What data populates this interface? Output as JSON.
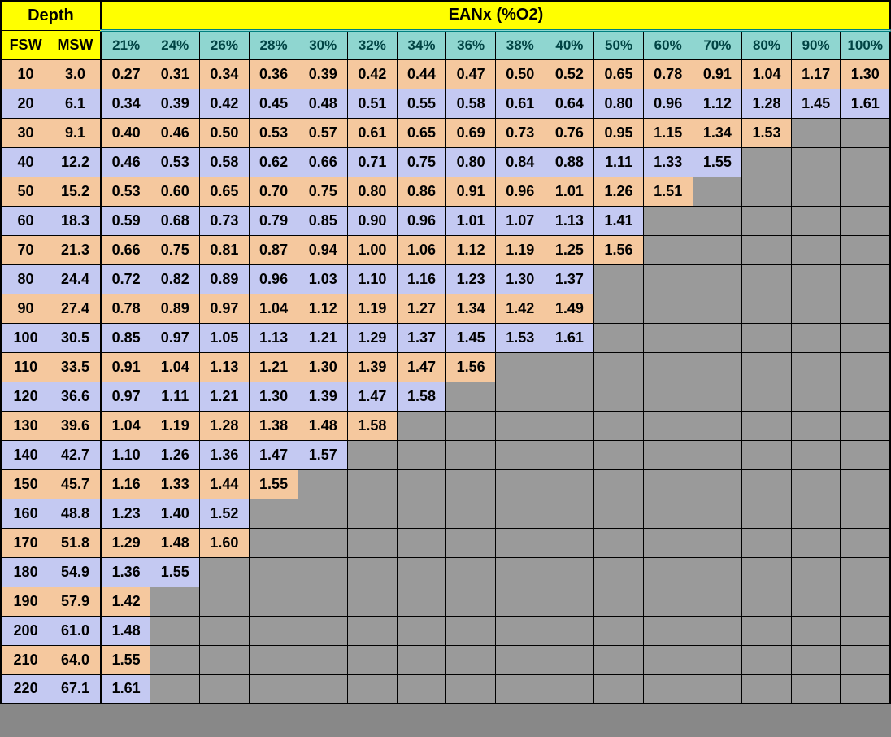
{
  "type": "table",
  "title_depth": "Depth",
  "title_eanx": "EANx (%O2)",
  "sub_fsw": "FSW",
  "sub_msw": "MSW",
  "colors": {
    "header_yellow": "#ffff00",
    "header_teal": "#8fd6d0",
    "row_odd": "#f5c89e",
    "row_even": "#c4c9f2",
    "gray": "#9a9a9a",
    "border": "#000000"
  },
  "fontsize": {
    "header": 20,
    "subheader": 18,
    "cell": 18
  },
  "o2_columns": [
    "21%",
    "24%",
    "26%",
    "28%",
    "30%",
    "32%",
    "34%",
    "36%",
    "38%",
    "40%",
    "50%",
    "60%",
    "70%",
    "80%",
    "90%",
    "100%"
  ],
  "rows": [
    {
      "fsw": "10",
      "msw": "3.0",
      "vals": [
        "0.27",
        "0.31",
        "0.34",
        "0.36",
        "0.39",
        "0.42",
        "0.44",
        "0.47",
        "0.50",
        "0.52",
        "0.65",
        "0.78",
        "0.91",
        "1.04",
        "1.17",
        "1.30"
      ]
    },
    {
      "fsw": "20",
      "msw": "6.1",
      "vals": [
        "0.34",
        "0.39",
        "0.42",
        "0.45",
        "0.48",
        "0.51",
        "0.55",
        "0.58",
        "0.61",
        "0.64",
        "0.80",
        "0.96",
        "1.12",
        "1.28",
        "1.45",
        "1.61"
      ]
    },
    {
      "fsw": "30",
      "msw": "9.1",
      "vals": [
        "0.40",
        "0.46",
        "0.50",
        "0.53",
        "0.57",
        "0.61",
        "0.65",
        "0.69",
        "0.73",
        "0.76",
        "0.95",
        "1.15",
        "1.34",
        "1.53",
        "",
        ""
      ]
    },
    {
      "fsw": "40",
      "msw": "12.2",
      "vals": [
        "0.46",
        "0.53",
        "0.58",
        "0.62",
        "0.66",
        "0.71",
        "0.75",
        "0.80",
        "0.84",
        "0.88",
        "1.11",
        "1.33",
        "1.55",
        "",
        "",
        ""
      ]
    },
    {
      "fsw": "50",
      "msw": "15.2",
      "vals": [
        "0.53",
        "0.60",
        "0.65",
        "0.70",
        "0.75",
        "0.80",
        "0.86",
        "0.91",
        "0.96",
        "1.01",
        "1.26",
        "1.51",
        "",
        "",
        "",
        ""
      ]
    },
    {
      "fsw": "60",
      "msw": "18.3",
      "vals": [
        "0.59",
        "0.68",
        "0.73",
        "0.79",
        "0.85",
        "0.90",
        "0.96",
        "1.01",
        "1.07",
        "1.13",
        "1.41",
        "",
        "",
        "",
        "",
        ""
      ]
    },
    {
      "fsw": "70",
      "msw": "21.3",
      "vals": [
        "0.66",
        "0.75",
        "0.81",
        "0.87",
        "0.94",
        "1.00",
        "1.06",
        "1.12",
        "1.19",
        "1.25",
        "1.56",
        "",
        "",
        "",
        "",
        ""
      ]
    },
    {
      "fsw": "80",
      "msw": "24.4",
      "vals": [
        "0.72",
        "0.82",
        "0.89",
        "0.96",
        "1.03",
        "1.10",
        "1.16",
        "1.23",
        "1.30",
        "1.37",
        "",
        "",
        "",
        "",
        "",
        ""
      ]
    },
    {
      "fsw": "90",
      "msw": "27.4",
      "vals": [
        "0.78",
        "0.89",
        "0.97",
        "1.04",
        "1.12",
        "1.19",
        "1.27",
        "1.34",
        "1.42",
        "1.49",
        "",
        "",
        "",
        "",
        "",
        ""
      ]
    },
    {
      "fsw": "100",
      "msw": "30.5",
      "vals": [
        "0.85",
        "0.97",
        "1.05",
        "1.13",
        "1.21",
        "1.29",
        "1.37",
        "1.45",
        "1.53",
        "1.61",
        "",
        "",
        "",
        "",
        "",
        ""
      ]
    },
    {
      "fsw": "110",
      "msw": "33.5",
      "vals": [
        "0.91",
        "1.04",
        "1.13",
        "1.21",
        "1.30",
        "1.39",
        "1.47",
        "1.56",
        "",
        "",
        "",
        "",
        "",
        "",
        "",
        ""
      ]
    },
    {
      "fsw": "120",
      "msw": "36.6",
      "vals": [
        "0.97",
        "1.11",
        "1.21",
        "1.30",
        "1.39",
        "1.47",
        "1.58",
        "",
        "",
        "",
        "",
        "",
        "",
        "",
        "",
        ""
      ]
    },
    {
      "fsw": "130",
      "msw": "39.6",
      "vals": [
        "1.04",
        "1.19",
        "1.28",
        "1.38",
        "1.48",
        "1.58",
        "",
        "",
        "",
        "",
        "",
        "",
        "",
        "",
        "",
        ""
      ]
    },
    {
      "fsw": "140",
      "msw": "42.7",
      "vals": [
        "1.10",
        "1.26",
        "1.36",
        "1.47",
        "1.57",
        "",
        "",
        "",
        "",
        "",
        "",
        "",
        "",
        "",
        "",
        ""
      ]
    },
    {
      "fsw": "150",
      "msw": "45.7",
      "vals": [
        "1.16",
        "1.33",
        "1.44",
        "1.55",
        "",
        "",
        "",
        "",
        "",
        "",
        "",
        "",
        "",
        "",
        "",
        ""
      ]
    },
    {
      "fsw": "160",
      "msw": "48.8",
      "vals": [
        "1.23",
        "1.40",
        "1.52",
        "",
        "",
        "",
        "",
        "",
        "",
        "",
        "",
        "",
        "",
        "",
        "",
        ""
      ]
    },
    {
      "fsw": "170",
      "msw": "51.8",
      "vals": [
        "1.29",
        "1.48",
        "1.60",
        "",
        "",
        "",
        "",
        "",
        "",
        "",
        "",
        "",
        "",
        "",
        "",
        ""
      ]
    },
    {
      "fsw": "180",
      "msw": "54.9",
      "vals": [
        "1.36",
        "1.55",
        "",
        "",
        "",
        "",
        "",
        "",
        "",
        "",
        "",
        "",
        "",
        "",
        "",
        ""
      ]
    },
    {
      "fsw": "190",
      "msw": "57.9",
      "vals": [
        "1.42",
        "",
        "",
        "",
        "",
        "",
        "",
        "",
        "",
        "",
        "",
        "",
        "",
        "",
        "",
        ""
      ]
    },
    {
      "fsw": "200",
      "msw": "61.0",
      "vals": [
        "1.48",
        "",
        "",
        "",
        "",
        "",
        "",
        "",
        "",
        "",
        "",
        "",
        "",
        "",
        "",
        ""
      ]
    },
    {
      "fsw": "210",
      "msw": "64.0",
      "vals": [
        "1.55",
        "",
        "",
        "",
        "",
        "",
        "",
        "",
        "",
        "",
        "",
        "",
        "",
        "",
        "",
        ""
      ]
    },
    {
      "fsw": "220",
      "msw": "67.1",
      "vals": [
        "1.61",
        "",
        "",
        "",
        "",
        "",
        "",
        "",
        "",
        "",
        "",
        "",
        "",
        "",
        "",
        ""
      ]
    }
  ],
  "column_widths": {
    "fsw": 60,
    "msw": 60,
    "data": 61
  }
}
